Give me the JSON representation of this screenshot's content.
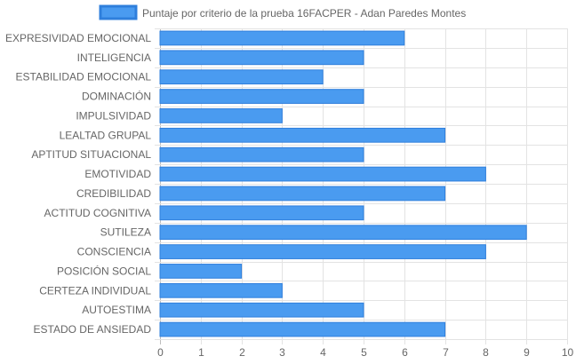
{
  "chart_data": {
    "type": "bar",
    "orientation": "horizontal",
    "legend": {
      "position": "top",
      "label": "Puntaje por criterio de la prueba 16FACPER - Adan Paredes Montes"
    },
    "categories": [
      "EXPRESIVIDAD EMOCIONAL",
      "INTELIGENCIA",
      "ESTABILIDAD EMOCIONAL",
      "DOMINACIÓN",
      "IMPULSIVIDAD",
      "LEALTAD GRUPAL",
      "APTITUD SITUACIONAL",
      "EMOTIVIDAD",
      "CREDIBILIDAD",
      "ACTITUD COGNITIVA",
      "SUTILEZA",
      "CONSCIENCIA",
      "POSICIÓN SOCIAL",
      "CERTEZA INDIVIDUAL",
      "AUTOESTIMA",
      "ESTADO DE ANSIEDAD"
    ],
    "series": [
      {
        "name": "Puntaje por criterio de la prueba 16FACPER - Adan Paredes Montes",
        "values": [
          6,
          5,
          4,
          5,
          3,
          7,
          5,
          8,
          7,
          5,
          9,
          8,
          2,
          3,
          5,
          7
        ]
      }
    ],
    "xlim": [
      0,
      10
    ],
    "xticks": [
      0,
      1,
      2,
      3,
      4,
      5,
      6,
      7,
      8,
      9,
      10
    ],
    "grid": true,
    "colors": {
      "bar_fill": "#4a9bf0",
      "bar_border": "#2f7fdc",
      "grid": "#e3e3e3",
      "axis": "#bdbdbd",
      "text": "#666666"
    }
  }
}
